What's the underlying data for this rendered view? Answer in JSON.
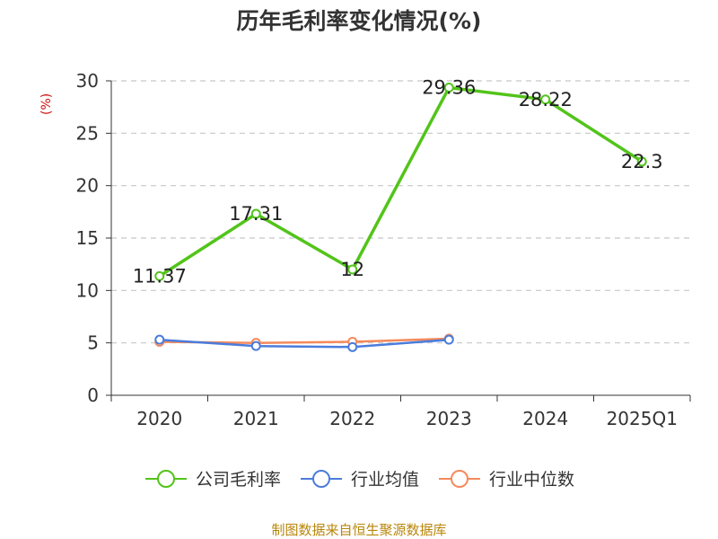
{
  "chart_data": {
    "type": "line",
    "title": "历年毛利率变化情况(%)",
    "ylabel": "(%)",
    "xlabel": "",
    "categories": [
      "2020",
      "2021",
      "2022",
      "2023",
      "2024",
      "2025Q1"
    ],
    "ylim": [
      0,
      30
    ],
    "yticks": [
      0,
      5,
      10,
      15,
      20,
      25,
      30
    ],
    "grid": true,
    "legend_position": "bottom",
    "series": [
      {
        "name": "公司毛利率",
        "color": "#52c41a",
        "values": [
          11.37,
          17.31,
          12,
          29.36,
          28.22,
          22.3
        ],
        "show_labels": true
      },
      {
        "name": "行业均值",
        "color": "#4a7cdc",
        "values": [
          5.3,
          4.7,
          4.6,
          5.3,
          null,
          null
        ],
        "show_labels": false
      },
      {
        "name": "行业中位数",
        "color": "#f5895a",
        "values": [
          5.1,
          5.0,
          5.1,
          5.4,
          null,
          null
        ],
        "show_labels": false
      }
    ]
  },
  "footer": {
    "source": "制图数据来自恒生聚源数据库"
  }
}
